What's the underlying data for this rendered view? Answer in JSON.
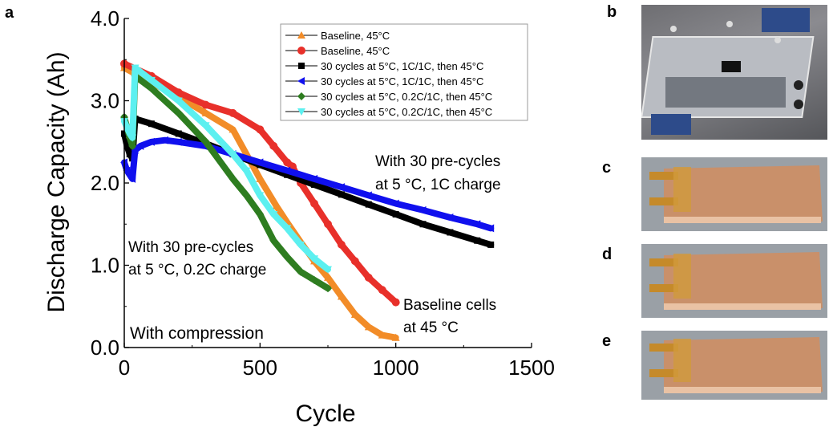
{
  "chart_data": {
    "type": "scatter",
    "panel_label": "a",
    "xlabel": "Cycle",
    "ylabel": "Discharge Capacity (Ah)",
    "xlim": [
      0,
      1500
    ],
    "ylim": [
      0,
      4.0
    ],
    "xticks": [
      "0",
      "500",
      "1000",
      "1500"
    ],
    "yticks": [
      "0.0",
      "1.0",
      "2.0",
      "3.0",
      "4.0"
    ],
    "grid": false,
    "legend_position": "top-right",
    "annotations": {
      "precycle_1c_line1": "With 30 pre-cycles",
      "precycle_1c_line2": "at 5 °C, 1C charge",
      "precycle_02c_line1": "With 30 pre-cycles",
      "precycle_02c_line2": "at 5 °C, 0.2C charge",
      "baseline_line1": "Baseline cells",
      "baseline_line2": "at 45 °C",
      "compression": "With compression"
    },
    "series": [
      {
        "name": "Baseline, 45°C",
        "color": "#F28C28",
        "marker": "triangle-up",
        "x": [
          0,
          100,
          200,
          300,
          400,
          500,
          560,
          600,
          650,
          700,
          750,
          800,
          850,
          900,
          950,
          1000
        ],
        "y": [
          3.4,
          3.22,
          3.05,
          2.85,
          2.65,
          2.05,
          1.72,
          1.52,
          1.28,
          1.05,
          0.85,
          0.62,
          0.4,
          0.25,
          0.15,
          0.12
        ]
      },
      {
        "name": "Baseline, 45°C",
        "color": "#E8302A",
        "marker": "circle",
        "x": [
          0,
          100,
          200,
          300,
          400,
          500,
          550,
          600,
          620,
          650,
          700,
          750,
          800,
          850,
          900,
          950,
          1000
        ],
        "y": [
          3.45,
          3.3,
          3.1,
          2.95,
          2.85,
          2.65,
          2.45,
          2.25,
          2.2,
          2.0,
          1.75,
          1.5,
          1.25,
          1.05,
          0.85,
          0.7,
          0.55
        ]
      },
      {
        "name": "30 cycles at 5°C, 1C/1C, then 45°C",
        "color": "#000000",
        "marker": "square",
        "x": [
          0,
          10,
          20,
          30,
          40,
          100,
          200,
          300,
          400,
          500,
          600,
          700,
          800,
          900,
          1000,
          1100,
          1200,
          1300,
          1350
        ],
        "y": [
          2.6,
          2.45,
          2.35,
          2.3,
          2.78,
          2.72,
          2.6,
          2.48,
          2.35,
          2.22,
          2.1,
          1.98,
          1.86,
          1.74,
          1.62,
          1.5,
          1.4,
          1.3,
          1.25
        ]
      },
      {
        "name": "30 cycles at 5°C, 1C/1C, then 45°C",
        "color": "#1010EE",
        "marker": "triangle-left",
        "x": [
          0,
          10,
          20,
          30,
          40,
          60,
          100,
          150,
          200,
          300,
          400,
          500,
          600,
          700,
          800,
          900,
          1000,
          1100,
          1200,
          1300,
          1350
        ],
        "y": [
          2.25,
          2.15,
          2.1,
          2.05,
          2.4,
          2.45,
          2.5,
          2.52,
          2.5,
          2.45,
          2.35,
          2.25,
          2.15,
          2.05,
          1.95,
          1.85,
          1.75,
          1.67,
          1.58,
          1.5,
          1.45
        ]
      },
      {
        "name": "30 cycles at 5°C, 0.2C/1C, then 45°C",
        "color": "#2E7D20",
        "marker": "diamond",
        "x": [
          0,
          20,
          30,
          40,
          100,
          200,
          300,
          400,
          450,
          500,
          550,
          570,
          600,
          650,
          700,
          750
        ],
        "y": [
          2.8,
          2.55,
          2.45,
          3.3,
          3.15,
          2.85,
          2.5,
          2.05,
          1.85,
          1.62,
          1.3,
          1.22,
          1.1,
          0.92,
          0.82,
          0.72
        ]
      },
      {
        "name": "30 cycles at 5°C, 0.2C/1C, then 45°C",
        "color": "#5CF0F0",
        "marker": "triangle-down",
        "x": [
          0,
          20,
          30,
          40,
          100,
          200,
          300,
          400,
          450,
          500,
          550,
          600,
          650,
          700,
          750
        ],
        "y": [
          2.75,
          2.6,
          2.55,
          3.4,
          3.25,
          3.0,
          2.7,
          2.35,
          2.15,
          1.85,
          1.62,
          1.45,
          1.25,
          1.08,
          0.95
        ]
      }
    ]
  },
  "photos": {
    "b_label": "b",
    "c_label": "c",
    "d_label": "d",
    "e_label": "e"
  }
}
